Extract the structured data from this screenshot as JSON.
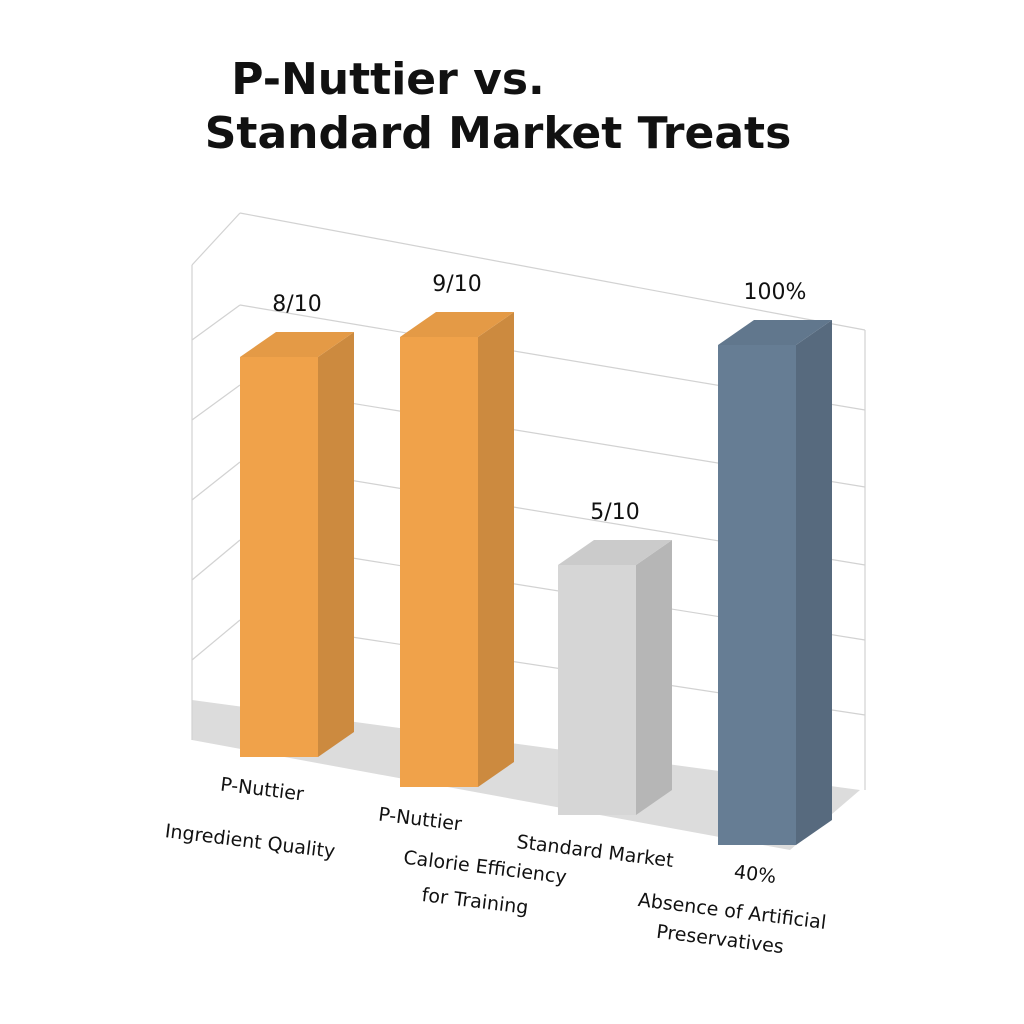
{
  "chart_data": {
    "type": "bar3d",
    "title": [
      "P-Nuttier vs.",
      "Standard Market Treats"
    ],
    "categories": [
      "P-Nuttier",
      "P-Nuttier",
      "Standard Market",
      "40%"
    ],
    "groups": [
      "Ingredient Quality",
      "Calorie Efficiency",
      "for Training",
      "Absence of Artificial",
      "Preservatives"
    ],
    "values": [
      80,
      90,
      50,
      100
    ],
    "value_labels": [
      "8/10",
      "9/10",
      "5/10",
      "100%"
    ],
    "colors": [
      "#f0a24a",
      "#f0a24a",
      "#d6d6d6",
      "#667d94"
    ],
    "ylim": [
      0,
      100
    ]
  }
}
